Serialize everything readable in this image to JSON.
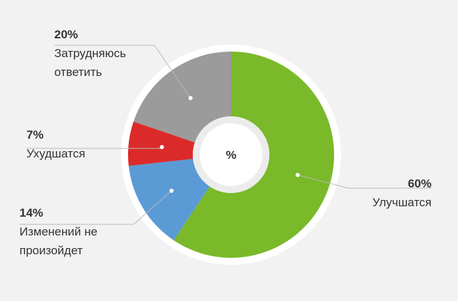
{
  "chart_data": {
    "type": "donut",
    "center_label": "%",
    "categories": [
      "Улучшатся",
      "Изменений не произойдет",
      "Ухудшатся",
      "Затрудняюсь ответить"
    ],
    "values": [
      60,
      14,
      7,
      20
    ],
    "value_labels": [
      "60%",
      "14%",
      "7%",
      "20%"
    ],
    "colors": [
      "#7ab929",
      "#5b9bd5",
      "#dc2a2a",
      "#9b9b9b"
    ]
  }
}
